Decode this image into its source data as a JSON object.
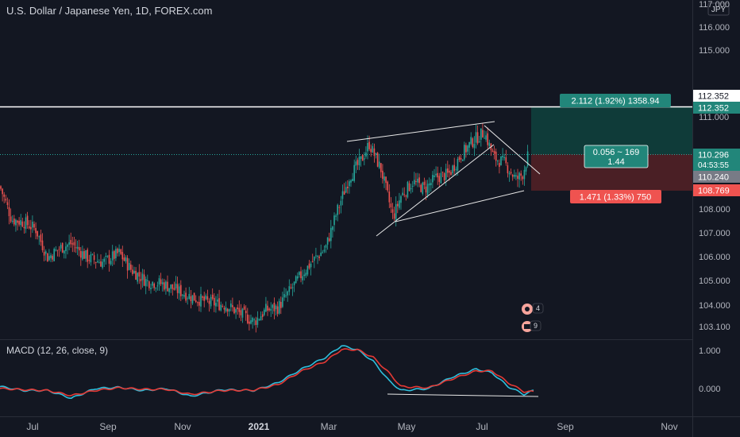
{
  "header": {
    "symbol_title": "U.S. Dollar / Japanese Yen, 1D, FOREX.com"
  },
  "currency_badge": "JPY",
  "price_axis": {
    "ticks": [
      "117.000",
      "116.000",
      "115.000",
      "112.352",
      "111.000",
      "108.000",
      "107.000",
      "106.000",
      "105.000",
      "104.000",
      "103.100"
    ]
  },
  "markers": {
    "tp_price": "112.352",
    "line_price": "112.352",
    "last_price": "110.296",
    "countdown": "04:53:55",
    "entry_price": "110.240",
    "stop_price": "108.769"
  },
  "position_tool": {
    "target_label": "2.112 (1.92%) 1358.94",
    "stop_label": "1.471 (1.33%) 750",
    "center_line1": "0.056 ~ 169",
    "center_line2": "1.44"
  },
  "events": {
    "earnings_count": "4",
    "dividends_count": "9"
  },
  "macd": {
    "title": "MACD (12, 26, close, 9)",
    "ticks": [
      "1.000",
      "0.000"
    ]
  },
  "time_axis": {
    "labels": [
      "Jul",
      "Sep",
      "Nov",
      "2021",
      "Mar",
      "May",
      "Jul",
      "Sep",
      "Nov"
    ]
  },
  "colors": {
    "background": "#131722",
    "up": "#26a69a",
    "down": "#ef5350",
    "macd_line": "#2ebfdc",
    "signal_line": "#e53935",
    "target_zone": "#0f3b39",
    "stop_zone": "#4a1f25"
  },
  "chart_data": {
    "type": "candlestick",
    "title": "U.S. Dollar / Japanese Yen, 1D, FOREX.com",
    "y_range": [
      102.9,
      117.0
    ],
    "key_levels": {
      "resistance_line": 112.352,
      "last": 110.296,
      "entry": 110.24,
      "stop": 108.769
    },
    "x_labels": [
      "Jul",
      "Sep",
      "Nov",
      "2021",
      "Mar",
      "May",
      "Jul",
      "Sep",
      "Nov"
    ],
    "series": [
      {
        "name": "Price (approx. close path)",
        "points": [
          [
            0,
            109.0
          ],
          [
            15,
            107.6
          ],
          [
            30,
            107.5
          ],
          [
            45,
            107.2
          ],
          [
            60,
            106.0
          ],
          [
            75,
            106.4
          ],
          [
            90,
            106.6
          ],
          [
            110,
            106.0
          ],
          [
            130,
            105.8
          ],
          [
            150,
            106.2
          ],
          [
            165,
            105.5
          ],
          [
            185,
            105.0
          ],
          [
            205,
            104.9
          ],
          [
            225,
            104.6
          ],
          [
            245,
            104.3
          ],
          [
            265,
            104.1
          ],
          [
            285,
            104.0
          ],
          [
            305,
            103.6
          ],
          [
            320,
            103.3
          ],
          [
            335,
            103.8
          ],
          [
            350,
            103.9
          ],
          [
            365,
            104.6
          ],
          [
            380,
            105.3
          ],
          [
            395,
            105.9
          ],
          [
            410,
            106.4
          ],
          [
            425,
            108.0
          ],
          [
            440,
            109.4
          ],
          [
            455,
            110.1
          ],
          [
            465,
            110.8
          ],
          [
            480,
            109.7
          ],
          [
            495,
            107.7
          ],
          [
            505,
            108.6
          ],
          [
            520,
            109.2
          ],
          [
            535,
            108.9
          ],
          [
            550,
            109.4
          ],
          [
            565,
            109.5
          ],
          [
            580,
            110.3
          ],
          [
            595,
            110.9
          ],
          [
            610,
            111.3
          ],
          [
            622,
            110.2
          ],
          [
            635,
            110.0
          ],
          [
            650,
            109.3
          ],
          [
            658,
            109.5
          ],
          [
            665,
            110.3
          ]
        ]
      }
    ],
    "macd": {
      "title": "MACD (12, 26, close, 9)",
      "y_ticks": [
        1.0,
        0.0
      ],
      "macd_points": [
        [
          0,
          0.05
        ],
        [
          30,
          -0.05
        ],
        [
          60,
          -0.05
        ],
        [
          90,
          -0.25
        ],
        [
          120,
          0.0
        ],
        [
          150,
          0.03
        ],
        [
          180,
          -0.05
        ],
        [
          210,
          0.0
        ],
        [
          240,
          -0.2
        ],
        [
          280,
          -0.03
        ],
        [
          320,
          -0.05
        ],
        [
          350,
          0.15
        ],
        [
          380,
          0.5
        ],
        [
          410,
          0.8
        ],
        [
          430,
          1.1
        ],
        [
          450,
          1.0
        ],
        [
          470,
          0.7
        ],
        [
          490,
          0.2
        ],
        [
          505,
          -0.05
        ],
        [
          540,
          0.0
        ],
        [
          570,
          0.3
        ],
        [
          600,
          0.5
        ],
        [
          620,
          0.4
        ],
        [
          640,
          0.05
        ],
        [
          660,
          -0.15
        ],
        [
          672,
          -0.05
        ]
      ],
      "signal_points": [
        [
          0,
          0.0
        ],
        [
          30,
          -0.03
        ],
        [
          60,
          -0.05
        ],
        [
          90,
          -0.18
        ],
        [
          120,
          -0.05
        ],
        [
          150,
          0.02
        ],
        [
          180,
          -0.02
        ],
        [
          210,
          -0.02
        ],
        [
          240,
          -0.15
        ],
        [
          280,
          -0.05
        ],
        [
          320,
          -0.04
        ],
        [
          350,
          0.1
        ],
        [
          380,
          0.45
        ],
        [
          410,
          0.7
        ],
        [
          430,
          1.0
        ],
        [
          450,
          1.0
        ],
        [
          470,
          0.8
        ],
        [
          490,
          0.4
        ],
        [
          505,
          0.05
        ],
        [
          540,
          0.02
        ],
        [
          570,
          0.25
        ],
        [
          600,
          0.45
        ],
        [
          620,
          0.45
        ],
        [
          640,
          0.15
        ],
        [
          660,
          -0.08
        ],
        [
          672,
          -0.08
        ]
      ]
    }
  }
}
